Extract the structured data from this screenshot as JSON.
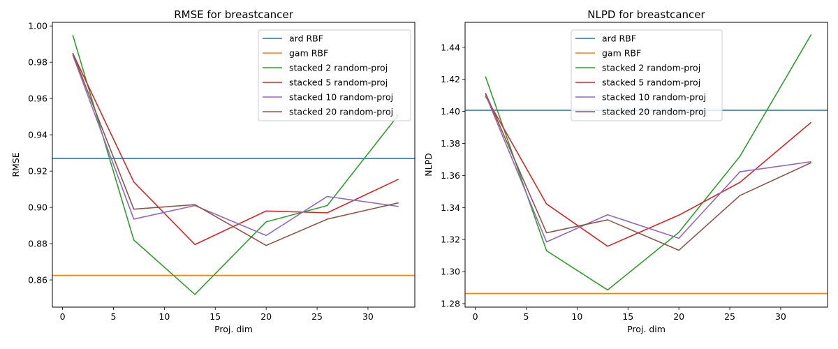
{
  "chart_data": [
    {
      "type": "line",
      "title": "RMSE for breastcancer",
      "xlabel": "Proj. dim",
      "ylabel": "RMSE",
      "xlim": [
        -1.0,
        34.6
      ],
      "ylim": [
        0.845,
        1.002
      ],
      "xticks": [
        0,
        5,
        10,
        15,
        20,
        25,
        30
      ],
      "yticks": [
        0.86,
        0.88,
        0.9,
        0.92,
        0.94,
        0.96,
        0.98,
        1.0
      ],
      "ytick_labels": [
        "0.86",
        "0.88",
        "0.90",
        "0.92",
        "0.94",
        "0.96",
        "0.98",
        "1.00"
      ],
      "legend_position": "upper right",
      "grid": false,
      "series": [
        {
          "name": "ard RBF",
          "color": "#1f77b4",
          "hline": 0.927
        },
        {
          "name": "gam RBF",
          "color": "#ff7f0e",
          "hline": 0.8625
        },
        {
          "name": "stacked 2 random-proj",
          "color": "#2ca02c",
          "x": [
            1,
            7,
            13,
            20,
            26,
            33
          ],
          "y": [
            0.995,
            0.882,
            0.852,
            0.892,
            0.901,
            0.951
          ]
        },
        {
          "name": "stacked 5 random-proj",
          "color": "#d62728",
          "x": [
            1,
            7,
            13,
            20,
            26,
            33
          ],
          "y": [
            0.985,
            0.914,
            0.8795,
            0.898,
            0.897,
            0.9155
          ]
        },
        {
          "name": "stacked 10 random-proj",
          "color": "#9467bd",
          "x": [
            1,
            7,
            13,
            20,
            26,
            33
          ],
          "y": [
            0.984,
            0.8935,
            0.901,
            0.8845,
            0.906,
            0.9005
          ]
        },
        {
          "name": "stacked 20 random-proj",
          "color": "#8c564b",
          "x": [
            1,
            7,
            13,
            20,
            26,
            33
          ],
          "y": [
            0.985,
            0.899,
            0.9015,
            0.879,
            0.8935,
            0.9025
          ]
        }
      ]
    },
    {
      "type": "line",
      "title": "NLPD for breastcancer",
      "xlabel": "Proj. dim",
      "ylabel": "NLPD",
      "xlim": [
        -1.0,
        34.6
      ],
      "ylim": [
        1.2778,
        1.4556
      ],
      "xticks": [
        0,
        5,
        10,
        15,
        20,
        25,
        30
      ],
      "yticks": [
        1.28,
        1.3,
        1.32,
        1.34,
        1.36,
        1.38,
        1.4,
        1.42,
        1.44
      ],
      "ytick_labels": [
        "1.28",
        "1.30",
        "1.32",
        "1.34",
        "1.36",
        "1.38",
        "1.40",
        "1.42",
        "1.44"
      ],
      "legend_position": "upper center",
      "grid": false,
      "series": [
        {
          "name": "ard RBF",
          "color": "#1f77b4",
          "hline": 1.4007
        },
        {
          "name": "gam RBF",
          "color": "#ff7f0e",
          "hline": 1.2863
        },
        {
          "name": "stacked 2 random-proj",
          "color": "#2ca02c",
          "x": [
            1,
            7,
            13,
            20,
            26,
            33
          ],
          "y": [
            1.4218,
            1.313,
            1.2885,
            1.3245,
            1.372,
            1.448
          ]
        },
        {
          "name": "stacked 5 random-proj",
          "color": "#d62728",
          "x": [
            1,
            7,
            13,
            20,
            26,
            33
          ],
          "y": [
            1.4095,
            1.3422,
            1.3158,
            1.3352,
            1.3557,
            1.3932
          ]
        },
        {
          "name": "stacked 10 random-proj",
          "color": "#9467bd",
          "x": [
            1,
            7,
            13,
            20,
            26,
            33
          ],
          "y": [
            1.4105,
            1.3185,
            1.3355,
            1.3208,
            1.3623,
            1.3686
          ]
        },
        {
          "name": "stacked 20 random-proj",
          "color": "#8c564b",
          "x": [
            1,
            7,
            13,
            20,
            26,
            33
          ],
          "y": [
            1.4115,
            1.3242,
            1.3323,
            1.3133,
            1.3475,
            1.368
          ]
        }
      ]
    }
  ]
}
